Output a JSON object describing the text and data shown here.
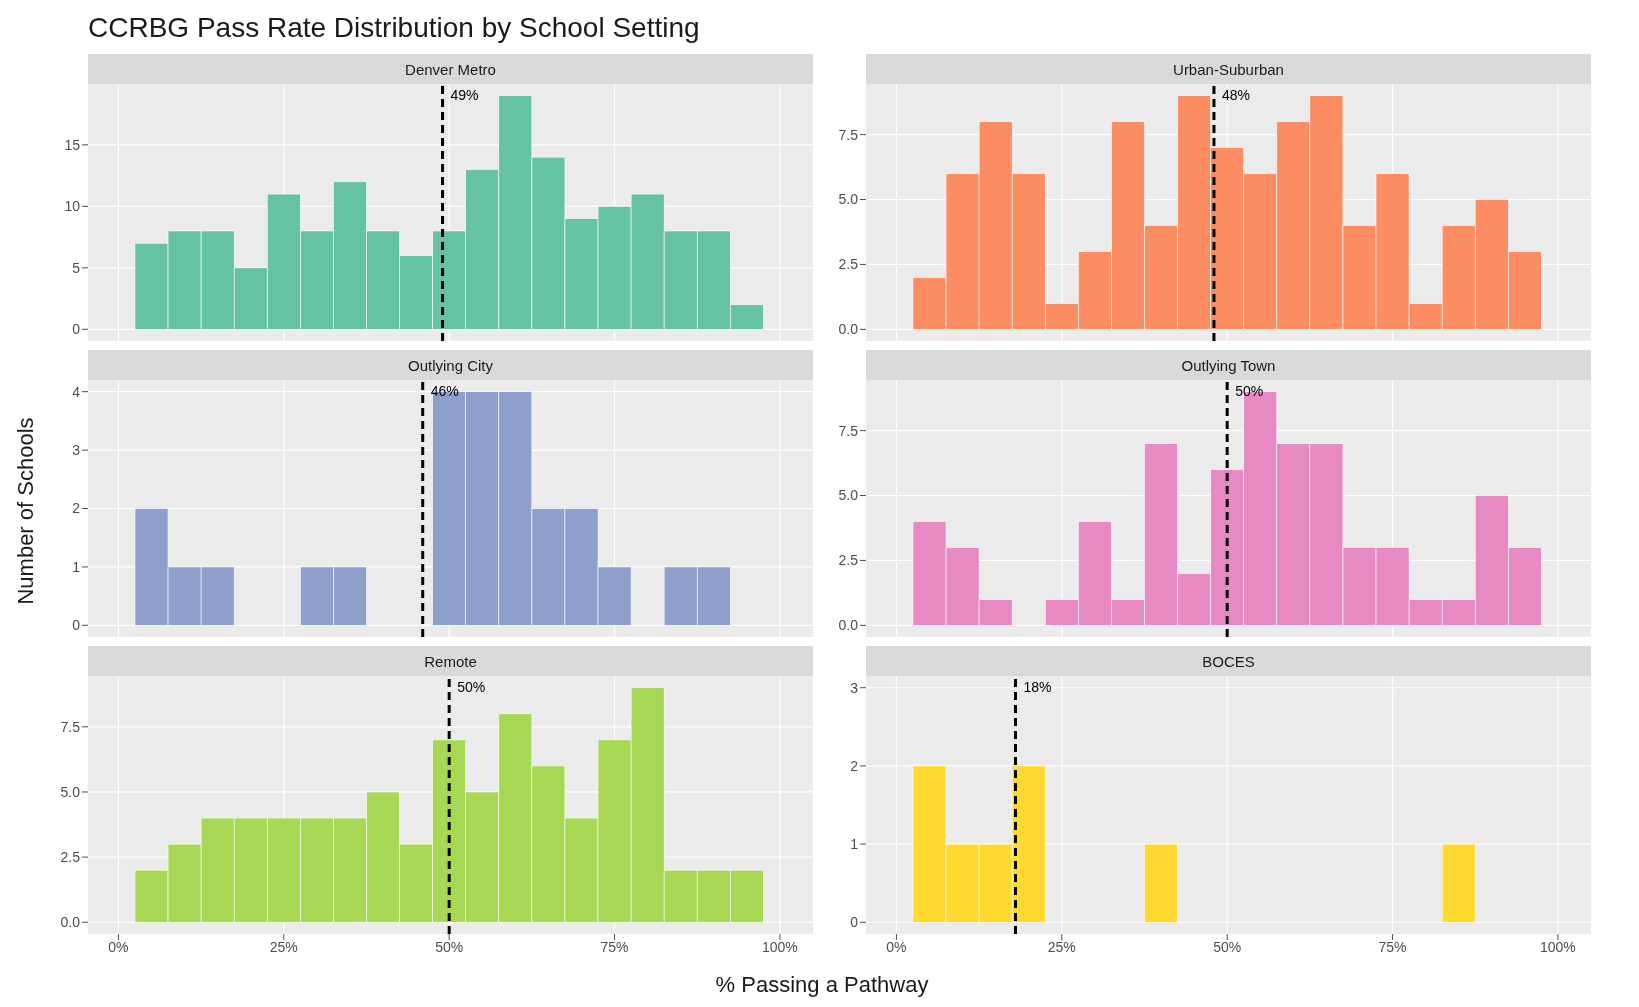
{
  "chart_data": [
    {
      "type": "histogram",
      "title": "Denver Metro",
      "annotations": [
        "CCRBG Pass Rate Distribution by School Setting"
      ],
      "bins": [
        2.5,
        7.5,
        12.5,
        17.5,
        22.5,
        27.5,
        32.5,
        37.5,
        42.5,
        47.5,
        52.5,
        57.5,
        62.5,
        67.5,
        72.5,
        77.5,
        82.5,
        87.5,
        92.5,
        97.5
      ],
      "values": [
        7,
        8,
        8,
        5,
        11,
        8,
        12,
        8,
        6,
        8,
        13,
        19,
        14,
        9,
        10,
        11,
        8,
        8,
        2
      ],
      "color": "#66c2a5",
      "xlim": [
        -4.6,
        105
      ],
      "xticks": [
        0,
        25,
        50,
        75,
        100
      ],
      "ylim": [
        -0.95,
        19.95
      ],
      "yticks": [
        0,
        5,
        10,
        15
      ],
      "tick_labels": "y",
      "grid": true,
      "ref_lines": [
        {
          "axis": "x",
          "value": 49,
          "label": "49%",
          "color": "#000000",
          "line_style": "dashed"
        }
      ]
    },
    {
      "type": "histogram",
      "title": "Urban-Suburban",
      "bins": [
        2.5,
        7.5,
        12.5,
        17.5,
        22.5,
        27.5,
        32.5,
        37.5,
        42.5,
        47.5,
        52.5,
        57.5,
        62.5,
        67.5,
        72.5,
        77.5,
        82.5,
        87.5,
        92.5,
        97.5
      ],
      "values": [
        2,
        6,
        8,
        6,
        1,
        3,
        8,
        4,
        9,
        7,
        6,
        8,
        9,
        4,
        6,
        1,
        4,
        5,
        3
      ],
      "color": "#fc8d62",
      "xlim": [
        -4.6,
        105
      ],
      "xticks": [
        0,
        25,
        50,
        75,
        100
      ],
      "ylim": [
        -0.45,
        9.45
      ],
      "yticks": [
        {
          "value": 0,
          "label": "0.0"
        },
        {
          "value": 2.5,
          "label": "2.5"
        },
        {
          "value": 5,
          "label": "5.0"
        },
        {
          "value": 7.5,
          "label": "7.5"
        }
      ],
      "tick_labels": "y",
      "grid": true,
      "ref_lines": [
        {
          "axis": "x",
          "value": 48,
          "label": "48%",
          "color": "#000000",
          "line_style": "dashed"
        }
      ]
    },
    {
      "type": "histogram",
      "title": "Outlying City",
      "ylabel": "Number of Schools",
      "bins": [
        2.5,
        7.5,
        12.5,
        17.5,
        22.5,
        27.5,
        32.5,
        37.5,
        42.5,
        47.5,
        52.5,
        57.5,
        62.5,
        67.5,
        72.5,
        77.5,
        82.5,
        87.5,
        92.5,
        97.5
      ],
      "values": [
        2,
        1,
        1,
        0,
        0,
        1,
        1,
        0,
        0,
        4,
        4,
        4,
        2,
        2,
        1,
        0,
        1,
        1,
        0
      ],
      "color": "#8da0cb",
      "xlim": [
        -4.6,
        105
      ],
      "xticks": [
        0,
        25,
        50,
        75,
        100
      ],
      "ylim": [
        -0.2,
        4.2
      ],
      "yticks": [
        0,
        1,
        2,
        3,
        4
      ],
      "tick_labels": "y",
      "grid": true,
      "ref_lines": [
        {
          "axis": "x",
          "value": 46,
          "label": "46%",
          "color": "#000000",
          "line_style": "dashed"
        }
      ]
    },
    {
      "type": "histogram",
      "title": "Outlying Town",
      "bins": [
        2.5,
        7.5,
        12.5,
        17.5,
        22.5,
        27.5,
        32.5,
        37.5,
        42.5,
        47.5,
        52.5,
        57.5,
        62.5,
        67.5,
        72.5,
        77.5,
        82.5,
        87.5,
        92.5,
        97.5
      ],
      "values": [
        4,
        3,
        1,
        0,
        1,
        4,
        1,
        7,
        2,
        6,
        9,
        7,
        7,
        3,
        3,
        1,
        1,
        5,
        3
      ],
      "color": "#e78ac3",
      "xlim": [
        -4.6,
        105
      ],
      "xticks": [
        0,
        25,
        50,
        75,
        100
      ],
      "ylim": [
        -0.45,
        9.45
      ],
      "yticks": [
        {
          "value": 0,
          "label": "0.0"
        },
        {
          "value": 2.5,
          "label": "2.5"
        },
        {
          "value": 5,
          "label": "5.0"
        },
        {
          "value": 7.5,
          "label": "7.5"
        }
      ],
      "tick_labels": "y",
      "grid": true,
      "ref_lines": [
        {
          "axis": "x",
          "value": 50,
          "label": "50%",
          "color": "#000000",
          "line_style": "dashed"
        }
      ]
    },
    {
      "type": "histogram",
      "title": "Remote",
      "xlabel": "% Passing a Pathway",
      "bins": [
        2.5,
        7.5,
        12.5,
        17.5,
        22.5,
        27.5,
        32.5,
        37.5,
        42.5,
        47.5,
        52.5,
        57.5,
        62.5,
        67.5,
        72.5,
        77.5,
        82.5,
        87.5,
        92.5,
        97.5
      ],
      "values": [
        2,
        3,
        4,
        4,
        4,
        4,
        4,
        5,
        3,
        7,
        5,
        8,
        6,
        4,
        7,
        9,
        2,
        2,
        2
      ],
      "color": "#a6d854",
      "xlim": [
        -4.6,
        105
      ],
      "xticks": [
        {
          "value": 0,
          "label": "0%"
        },
        {
          "value": 25,
          "label": "25%"
        },
        {
          "value": 50,
          "label": "50%"
        },
        {
          "value": 75,
          "label": "75%"
        },
        {
          "value": 100,
          "label": "100%"
        }
      ],
      "ylim": [
        -0.45,
        9.45
      ],
      "yticks": [
        {
          "value": 0,
          "label": "0.0"
        },
        {
          "value": 2.5,
          "label": "2.5"
        },
        {
          "value": 5,
          "label": "5.0"
        },
        {
          "value": 7.5,
          "label": "7.5"
        }
      ],
      "grid": true,
      "ref_lines": [
        {
          "axis": "x",
          "value": 50,
          "label": "50%",
          "color": "#000000",
          "line_style": "dashed"
        }
      ]
    },
    {
      "type": "histogram",
      "title": "BOCES",
      "bins": [
        2.5,
        7.5,
        12.5,
        17.5,
        22.5,
        27.5,
        32.5,
        37.5,
        42.5,
        47.5,
        52.5,
        57.5,
        62.5,
        67.5,
        72.5,
        77.5,
        82.5,
        87.5,
        92.5,
        97.5
      ],
      "values": [
        2,
        1,
        1,
        2,
        0,
        0,
        0,
        1,
        0,
        0,
        0,
        0,
        0,
        0,
        0,
        0,
        1,
        0,
        0
      ],
      "color": "#ffd92f",
      "xlim": [
        -4.6,
        105
      ],
      "xticks": [
        {
          "value": 0,
          "label": "0%"
        },
        {
          "value": 25,
          "label": "25%"
        },
        {
          "value": 50,
          "label": "50%"
        },
        {
          "value": 75,
          "label": "75%"
        },
        {
          "value": 100,
          "label": "100%"
        }
      ],
      "ylim": [
        -0.15,
        3.15
      ],
      "yticks": [
        0,
        1,
        2,
        3
      ],
      "grid": true,
      "ref_lines": [
        {
          "axis": "x",
          "value": 18,
          "label": "18%",
          "color": "#000000",
          "line_style": "dashed"
        }
      ]
    }
  ]
}
